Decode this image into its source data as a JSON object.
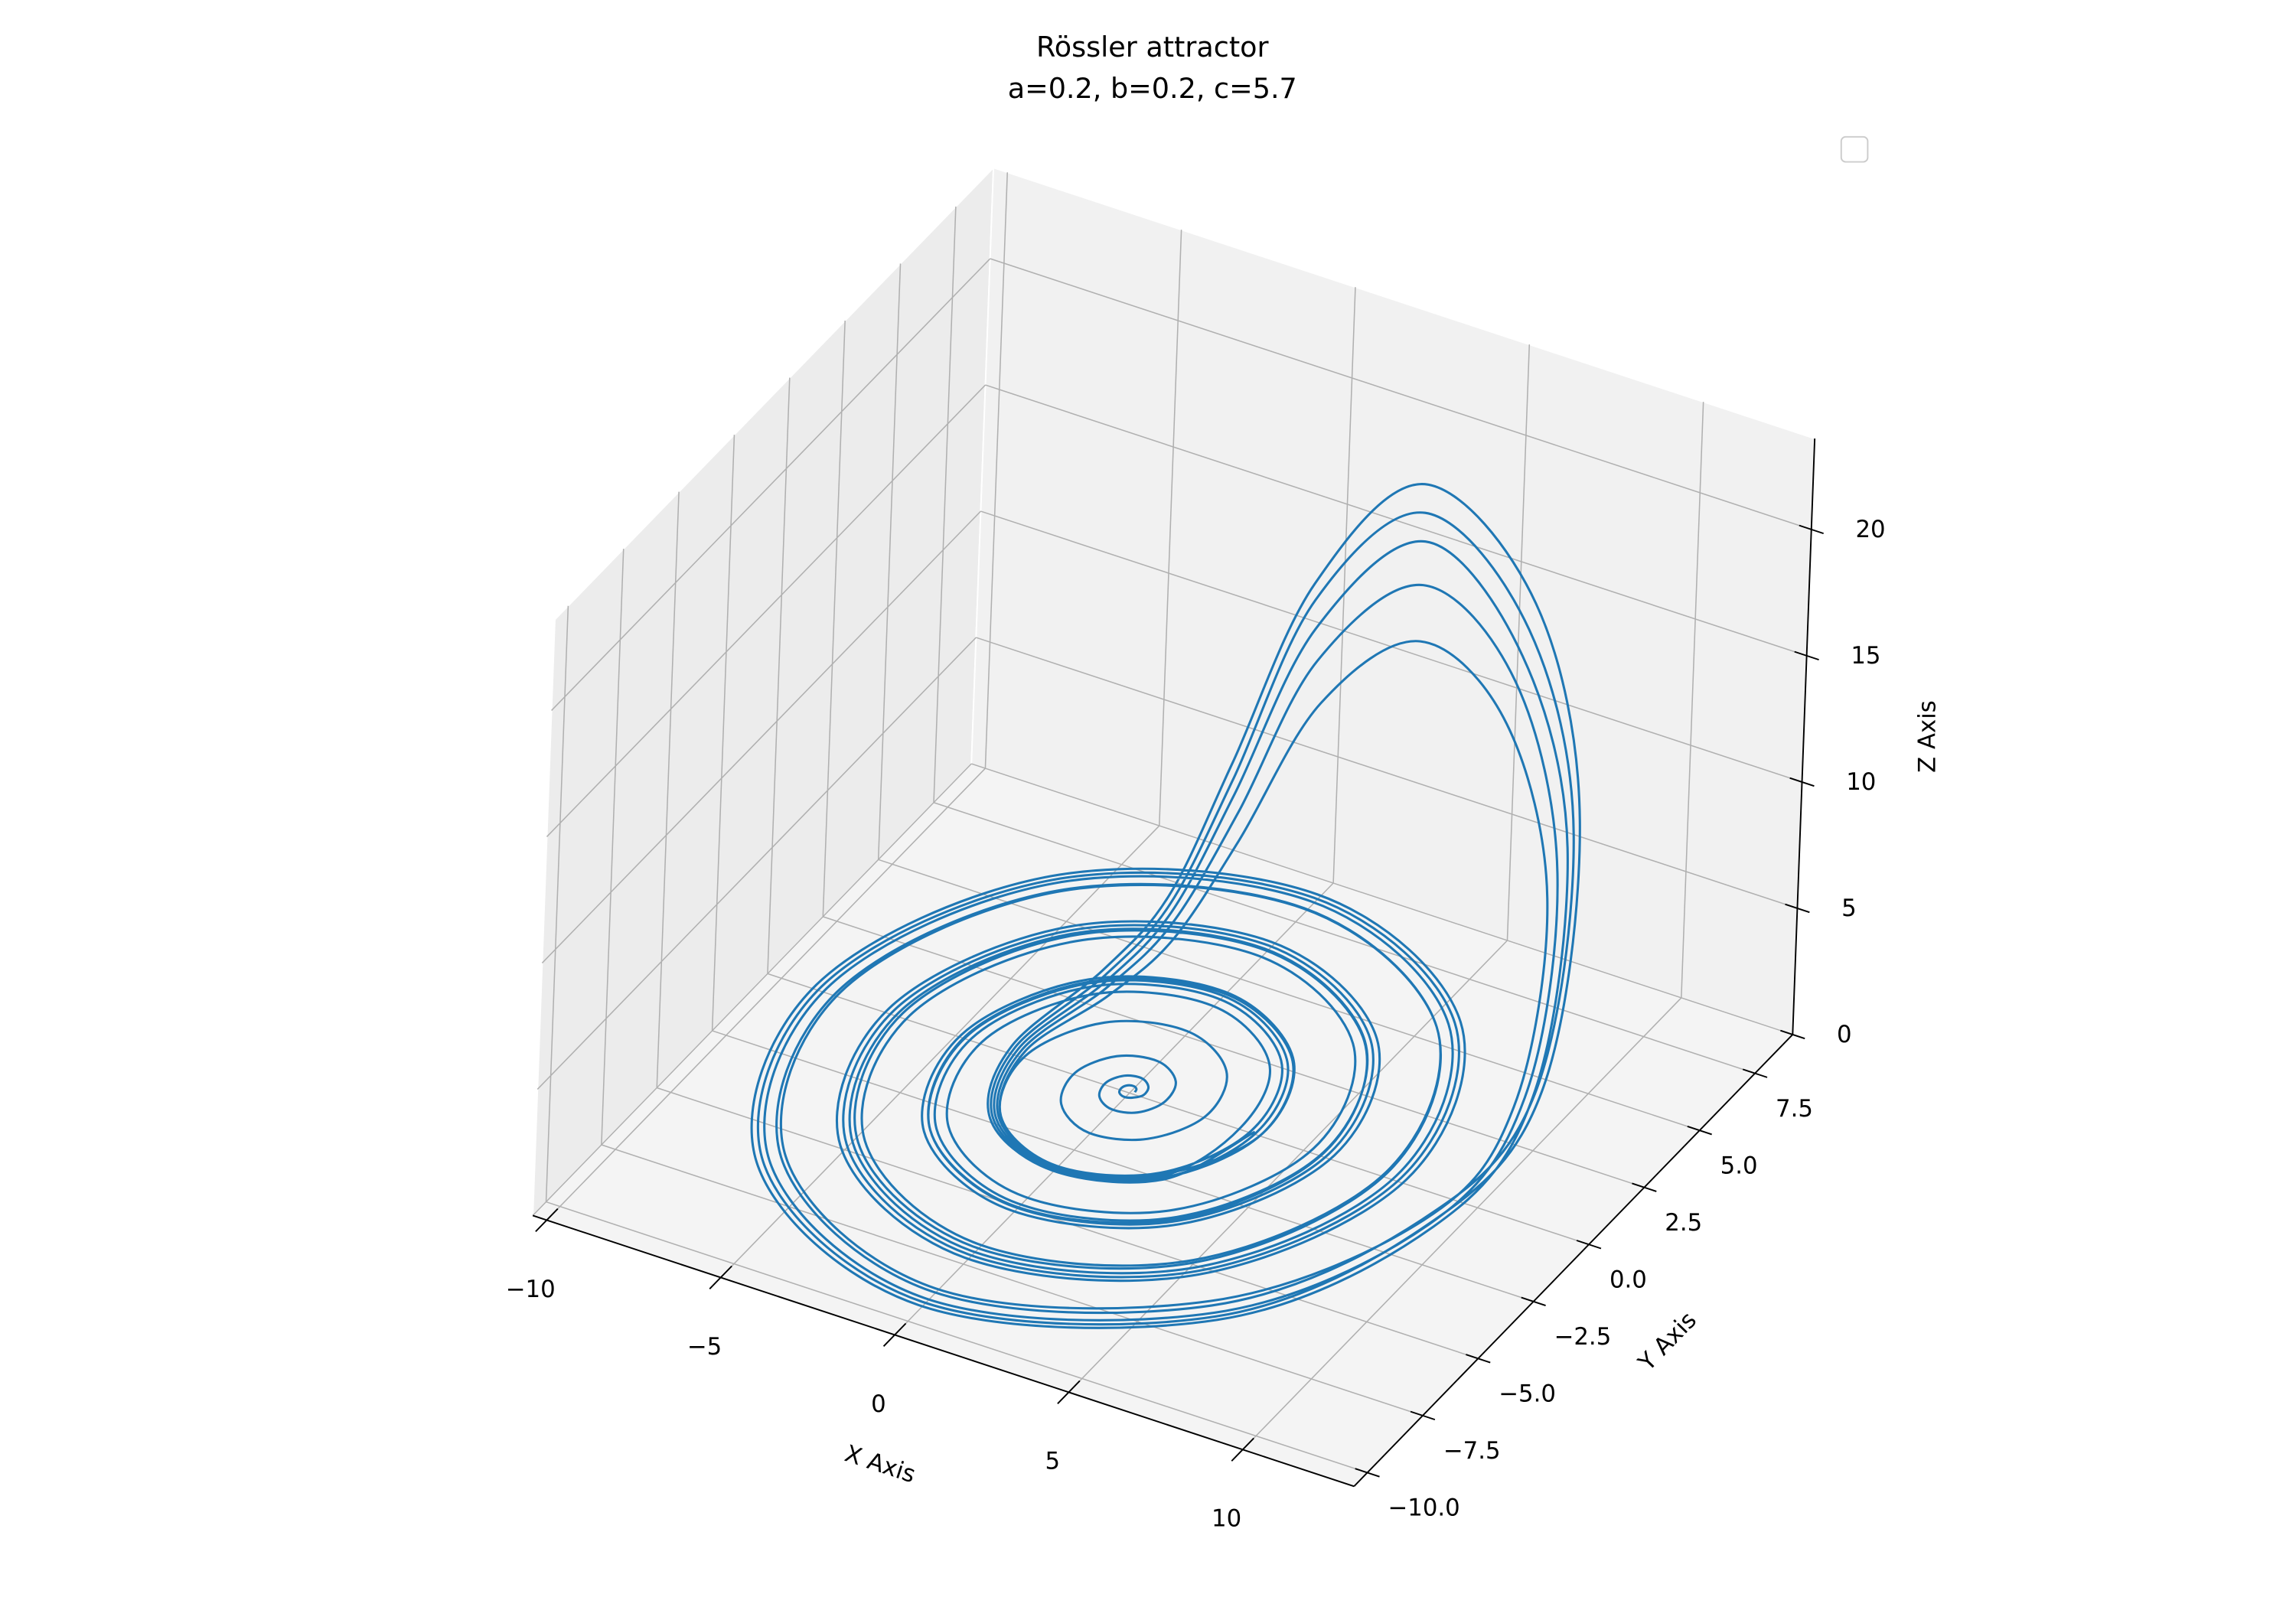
{
  "chart_data": {
    "type": "line3d",
    "title": "Rössler attractor",
    "subtitle": "a=0.2, b=0.2, c=5.7",
    "xlabel": "X Axis",
    "ylabel": "Y Axis",
    "zlabel": "Z Axis",
    "xlim": [
      -10.4,
      13.2
    ],
    "ylim": [
      -10.6,
      9.2
    ],
    "zlim": [
      0,
      23.6
    ],
    "xticks": [
      {
        "value": -10,
        "label": "−10"
      },
      {
        "value": -5,
        "label": "−5"
      },
      0,
      5,
      10
    ],
    "yticks": [
      {
        "value": -10,
        "label": "−10.0"
      },
      {
        "value": -7.5,
        "label": "−7.5"
      },
      {
        "value": -5,
        "label": "−5.0"
      },
      {
        "value": -2.5,
        "label": "−2.5"
      },
      {
        "value": 0,
        "label": "0.0"
      },
      2.5,
      {
        "value": 5,
        "label": "5.0"
      },
      7.5
    ],
    "zticks": [
      0,
      5,
      10,
      15,
      20
    ],
    "grid": true,
    "legend": "upper right",
    "series": [
      {
        "color": "#1f77b4",
        "x": [
          0.15,
          0.12,
          0,
          -0.15,
          -0.23,
          -0.18,
          0,
          0.21,
          0.4,
          0.33,
          0,
          -0.43,
          -0.68,
          -0.53,
          0,
          0.64,
          1,
          0.81,
          0,
          -1,
          -1.56,
          -1.2,
          0,
          1.41,
          2.2,
          1.7,
          0,
          -1.98,
          -3,
          -2.26,
          0,
          2.55,
          3.8,
          2.85,
          0,
          -3.17,
          -4.72,
          -3.5,
          0,
          3.82,
          5.6,
          4.12,
          0,
          -4.45,
          -6.52,
          -4.77,
          0,
          5.09,
          7.4,
          5.39,
          0,
          -5.72,
          -8.32,
          -6.04,
          0,
          6.36,
          9.4,
          10.2,
          9.6,
          7.6,
          5,
          2.6,
          0.9,
          -0.5,
          -1.9,
          -3,
          -2.26,
          0,
          2.4,
          3.5,
          2.66,
          0,
          -3.03,
          -4.54,
          -3.39,
          0,
          3.76,
          5.58,
          4.13,
          0,
          -4.5,
          -6.62,
          -4.86,
          0,
          5.23,
          7.66,
          5.6,
          0,
          -5.97,
          -8.7,
          -6.33,
          0,
          6.7,
          9.6,
          10.5,
          9.8,
          7.7,
          4.9,
          2.4,
          0.8,
          -0.6,
          -2,
          -3.1,
          -2.3,
          0,
          2.45,
          3.8,
          2.87,
          0,
          -3.24,
          -4.84,
          -3.61,
          0,
          3.97,
          5.88,
          4.34,
          0,
          -4.71,
          -6.92,
          -5.08,
          0,
          5.44,
          7.96,
          5.81,
          0,
          -6.18,
          -9,
          -6.55,
          0,
          6.91,
          9.8,
          10.8,
          10,
          7.8,
          4.8,
          2.2,
          0.6,
          -0.7,
          -2.1,
          -3.2,
          -2.35,
          0,
          2.5,
          3.2,
          2.45,
          0,
          -2.81,
          -4.24,
          -3.18,
          0,
          3.55,
          5.28,
          3.92,
          0,
          -4.28,
          -6.32,
          -4.65,
          0,
          5.02,
          7.36,
          5.39,
          0,
          -5.75,
          -8.4,
          -6.12,
          0,
          6.49,
          9.4,
          10.9,
          10.1,
          7.9,
          4.7,
          2.1,
          0.5,
          -0.8,
          -2.2,
          -3.3,
          -2.4,
          0,
          2.55,
          3.65,
          2.76,
          0,
          -3.13,
          -4.69,
          -3.5,
          0,
          3.87,
          5.73,
          4.23,
          0,
          -4.6,
          -6.77,
          -4.97,
          0,
          5.34,
          7.81,
          5.71,
          0,
          -6.07,
          -8.85,
          -6.44,
          0,
          6.81,
          9.7,
          11.1,
          10.2,
          8,
          4.6,
          2,
          0.4,
          -0.9,
          -2.3,
          -3.4,
          -2.45,
          0,
          2.6,
          3.6
        ],
        "y": [
          0,
          0.12,
          0.19,
          0.15,
          0,
          -0.18,
          -0.27,
          -0.21,
          0,
          0.33,
          0.54,
          0.43,
          0,
          -0.53,
          -0.82,
          -0.64,
          0,
          0.81,
          1.28,
          1,
          0,
          -1.2,
          -1.85,
          -1.41,
          0,
          1.7,
          2.6,
          1.98,
          0,
          -2.26,
          -3.4,
          -2.55,
          0,
          2.85,
          4.26,
          3.17,
          0,
          -3.5,
          -5.18,
          -3.82,
          0,
          4.12,
          6.06,
          4.45,
          0,
          -4.77,
          -6.98,
          -5.09,
          0,
          5.39,
          7.86,
          5.72,
          0,
          -6.04,
          -8.78,
          -6.36,
          -1.5,
          1.2,
          3.4,
          4.5,
          4.6,
          4,
          3.2,
          2.6,
          2,
          0,
          -2.26,
          -3.3,
          -2.4,
          0,
          2.66,
          4.02,
          3.03,
          0,
          -3.39,
          -5.06,
          -3.76,
          0,
          4.13,
          6.1,
          4.5,
          0,
          -4.86,
          -7.14,
          -5.23,
          0,
          5.6,
          8.18,
          5.97,
          0,
          -6.33,
          -9.22,
          -6.7,
          -1.6,
          1.2,
          3.5,
          4.7,
          4.8,
          4.1,
          3.3,
          2.7,
          2.1,
          0,
          -2.3,
          -3.35,
          -2.45,
          0,
          2.87,
          4.32,
          3.24,
          0,
          -3.61,
          -5.36,
          -3.97,
          0,
          4.34,
          6.4,
          4.71,
          0,
          -5.08,
          -7.44,
          -5.44,
          0,
          5.81,
          8.48,
          6.18,
          0,
          -6.55,
          -9.52,
          -6.91,
          -1.7,
          1.1,
          3.6,
          4.8,
          5,
          4.3,
          3.4,
          2.8,
          2.2,
          0,
          -2.35,
          -3.4,
          -2.5,
          0,
          2.45,
          3.72,
          2.81,
          0,
          -3.18,
          -4.76,
          -3.55,
          0,
          3.92,
          5.8,
          4.28,
          0,
          -4.65,
          -6.84,
          -5.02,
          0,
          5.39,
          7.88,
          5.75,
          0,
          -6.12,
          -8.92,
          -6.49,
          -1.6,
          1,
          3.7,
          4.9,
          5.1,
          4.4,
          3.5,
          2.9,
          2.3,
          0,
          -2.4,
          -3.45,
          -2.55,
          0,
          2.76,
          4.17,
          3.13,
          0,
          -3.5,
          -5.21,
          -3.87,
          0,
          4.23,
          6.25,
          4.6,
          0,
          -4.97,
          -7.29,
          -5.34,
          0,
          5.71,
          8.33,
          6.07,
          0,
          -6.44,
          -9.37,
          -6.81,
          -1.7,
          1,
          3.8,
          5,
          5.2,
          4.5,
          3.6,
          3,
          2.4,
          0,
          -2.45,
          -3.5,
          -2.6,
          0
        ],
        "z": [
          0.1,
          0.1,
          0.1,
          0.1,
          0.1,
          0.1,
          0.1,
          0.1,
          0.1,
          0.1,
          0.1,
          0.1,
          0.1,
          0.1,
          0.1,
          0.1,
          0.1,
          0.1,
          0.1,
          0.1,
          0.1,
          0.1,
          0.1,
          0.1,
          0.1,
          0.1,
          0.1,
          0.1,
          0.1,
          0.1,
          0.1,
          0.1,
          0.1,
          0.1,
          0.1,
          0.1,
          0.1,
          0.1,
          0.2,
          0.2,
          0.2,
          0.2,
          0.2,
          0.2,
          0.2,
          0.2,
          0.2,
          0.2,
          0.2,
          0.2,
          0.2,
          0.2,
          0.2,
          0.2,
          0.2,
          0.4,
          0.6,
          3,
          9,
          14,
          16,
          13,
          7.5,
          3.5,
          1.2,
          0.3,
          0.1,
          0.1,
          0.1,
          0.1,
          0.1,
          0.1,
          0.1,
          0.1,
          0.1,
          0.2,
          0.2,
          0.2,
          0.2,
          0.2,
          0.2,
          0.2,
          0.2,
          0.2,
          0.2,
          0.2,
          0.2,
          0.2,
          0.2,
          0.2,
          0.2,
          0.2,
          0.4,
          0.6,
          3.5,
          10,
          15.5,
          18,
          14.5,
          8.5,
          4,
          1.4,
          0.3,
          0.1,
          0.1,
          0.1,
          0.1,
          0.1,
          0.1,
          0.1,
          0.1,
          0.1,
          0.2,
          0.2,
          0.2,
          0.2,
          0.2,
          0.2,
          0.2,
          0.2,
          0.2,
          0.2,
          0.2,
          0.2,
          0.2,
          0.2,
          0.2,
          0.2,
          0.2,
          0.4,
          0.7,
          3.8,
          11,
          16.5,
          19.5,
          15.5,
          9,
          4.3,
          1.5,
          0.3,
          0.1,
          0.1,
          0.1,
          0.1,
          0.1,
          0.1,
          0.1,
          0.1,
          0.1,
          0.2,
          0.2,
          0.2,
          0.2,
          0.2,
          0.2,
          0.2,
          0.2,
          0.2,
          0.2,
          0.2,
          0.2,
          0.2,
          0.2,
          0.2,
          0.2,
          0.2,
          0.4,
          0.7,
          4,
          11.5,
          17.5,
          20.5,
          16.5,
          9.5,
          4.5,
          1.6,
          0.3,
          0.1,
          0.1,
          0.1,
          0.1,
          0.1,
          0.1,
          0.1,
          0.1,
          0.1,
          0.2,
          0.2,
          0.2,
          0.2,
          0.2,
          0.2,
          0.2,
          0.2,
          0.2,
          0.2,
          0.2,
          0.2,
          0.2,
          0.2,
          0.2,
          0.2,
          0.2,
          0.4,
          0.8,
          4.2,
          12,
          18.5,
          21.5,
          17,
          10,
          4.7,
          1.7,
          0.3,
          0.1,
          0.1,
          0.1,
          0.1
        ]
      }
    ]
  }
}
